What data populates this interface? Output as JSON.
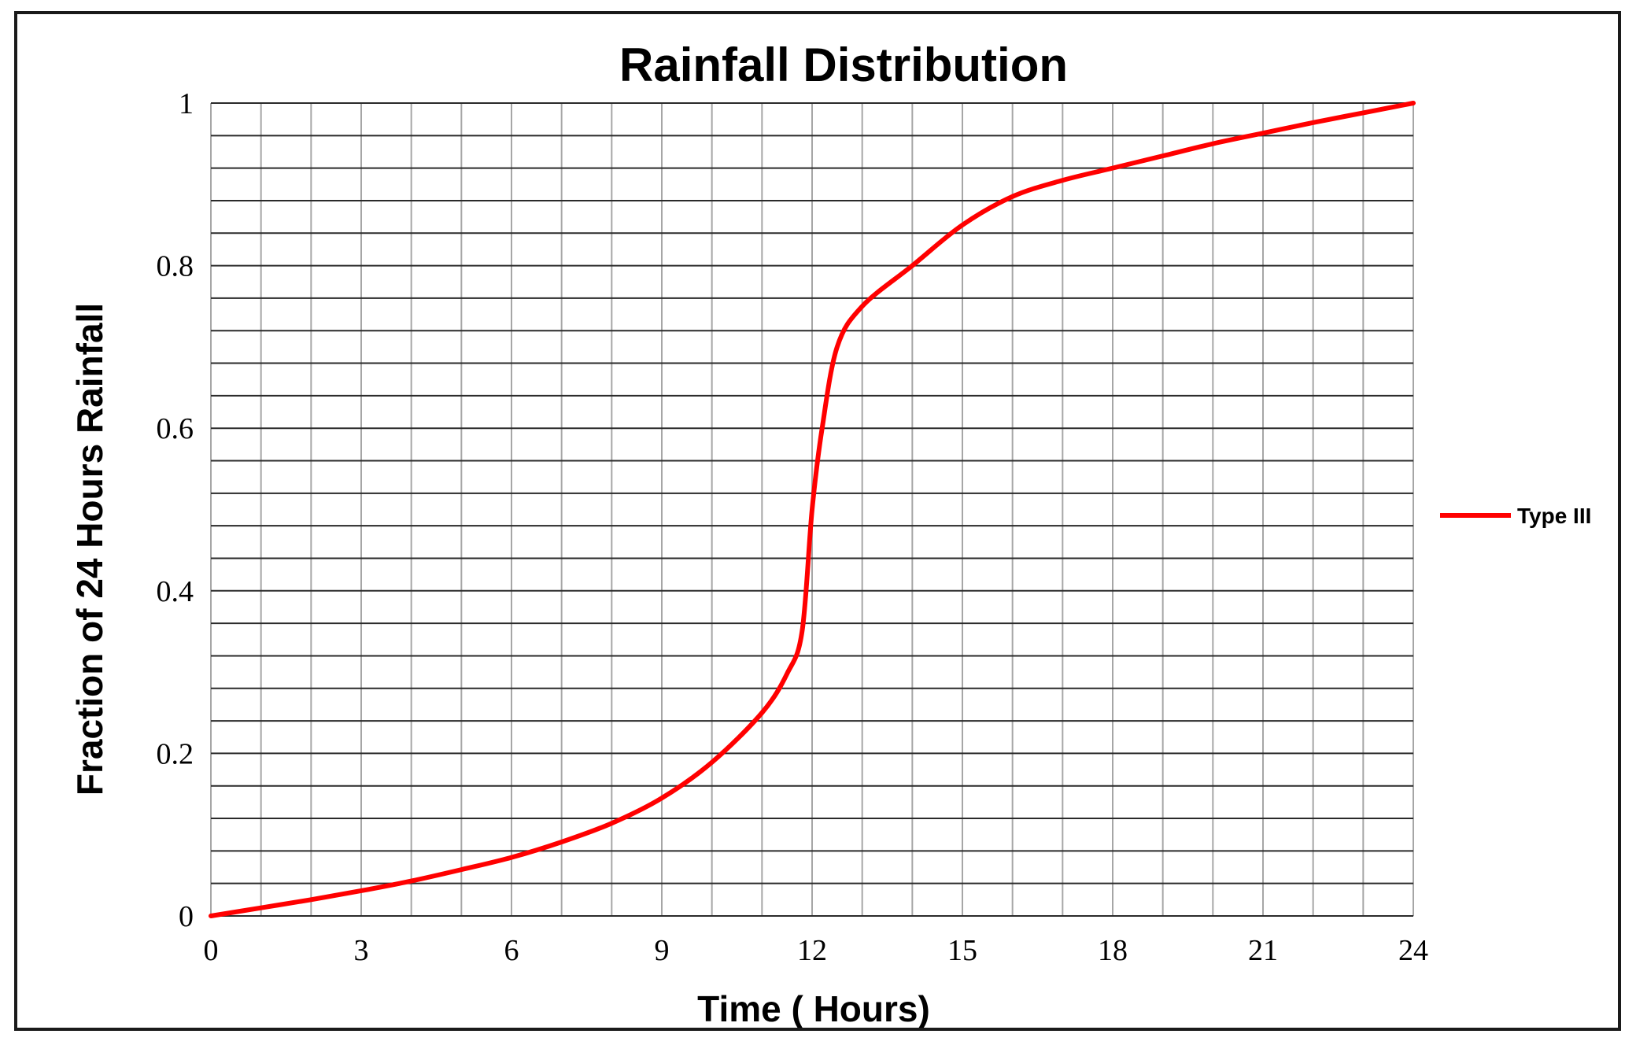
{
  "chart_data": {
    "type": "line",
    "title": "Rainfall Distribution",
    "xlabel": "Time ( Hours)",
    "ylabel": "Fraction of 24 Hours Rainfall",
    "xlim": [
      0,
      24
    ],
    "ylim": [
      0,
      1
    ],
    "x_ticks": [
      "0",
      "3",
      "6",
      "9",
      "12",
      "15",
      "18",
      "21",
      "24"
    ],
    "y_ticks": [
      "0",
      "0.2",
      "0.4",
      "0.6",
      "0.8",
      "1"
    ],
    "grid": true,
    "legend_position": "right",
    "series": [
      {
        "name": "Type III",
        "color": "#ff0000",
        "x": [
          0,
          1,
          2,
          3,
          4,
          5,
          6,
          7,
          8,
          9,
          10,
          11,
          11.5,
          11.8,
          12,
          12.2,
          12.5,
          13,
          14,
          15,
          16,
          17,
          18,
          19,
          20,
          21,
          22,
          23,
          24
        ],
        "y": [
          0,
          0.01,
          0.02,
          0.031,
          0.043,
          0.057,
          0.072,
          0.091,
          0.114,
          0.145,
          0.189,
          0.25,
          0.298,
          0.35,
          0.5,
          0.6,
          0.7,
          0.75,
          0.8,
          0.85,
          0.885,
          0.905,
          0.92,
          0.935,
          0.95,
          0.963,
          0.976,
          0.988,
          1
        ]
      }
    ]
  }
}
